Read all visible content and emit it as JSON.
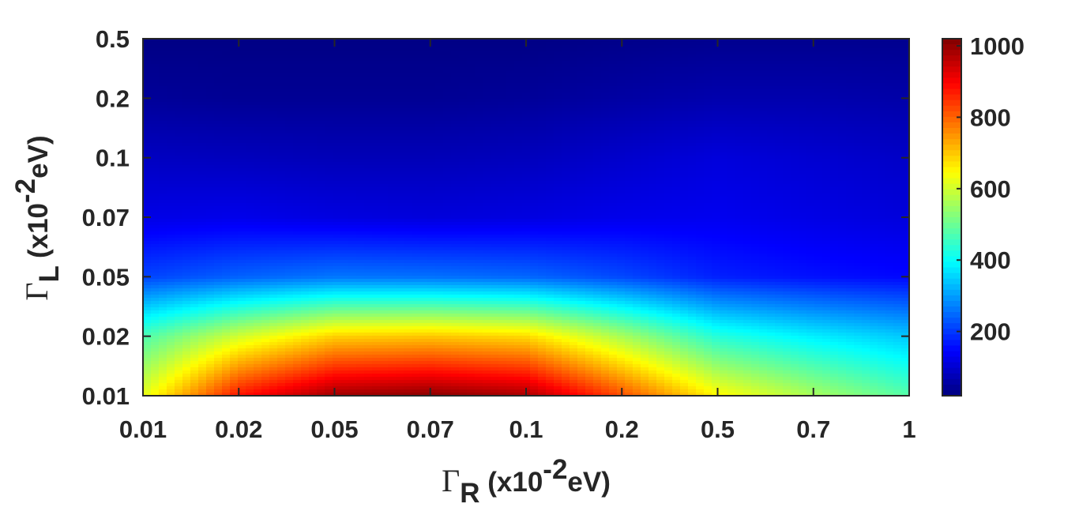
{
  "chart_data": {
    "type": "heatmap",
    "title": "",
    "xlabel": {
      "symbol": "Γ",
      "sub": "R",
      "unit_pre": " (x10",
      "unit_sup": "-2",
      "unit_post": "eV)"
    },
    "ylabel": {
      "symbol": "Γ",
      "sub": "L",
      "unit_pre": " (x10",
      "unit_sup": "-2",
      "unit_post": "eV)"
    },
    "x_ticks": [
      "0.01",
      "0.02",
      "0.05",
      "0.07",
      "0.1",
      "0.2",
      "0.5",
      "0.7",
      "1"
    ],
    "y_ticks": [
      "0.01",
      "0.02",
      "0.05",
      "0.07",
      "0.1",
      "0.2",
      "0.5"
    ],
    "colorbar": {
      "ticks": [
        200,
        400,
        600,
        800,
        1000
      ],
      "range": [
        20,
        1020
      ],
      "colormap": "jet"
    },
    "grid": false,
    "z": [
      [
        620,
        880,
        990,
        1010,
        980,
        820,
        650,
        560,
        480
      ],
      [
        470,
        600,
        690,
        700,
        680,
        560,
        430,
        380,
        340
      ],
      [
        210,
        240,
        260,
        255,
        245,
        215,
        175,
        160,
        150
      ],
      [
        120,
        125,
        115,
        110,
        115,
        125,
        130,
        120,
        110
      ],
      [
        85,
        80,
        75,
        75,
        80,
        95,
        110,
        100,
        90
      ],
      [
        45,
        40,
        40,
        40,
        45,
        55,
        65,
        65,
        60
      ],
      [
        25,
        25,
        25,
        25,
        25,
        30,
        35,
        35,
        35
      ]
    ]
  }
}
